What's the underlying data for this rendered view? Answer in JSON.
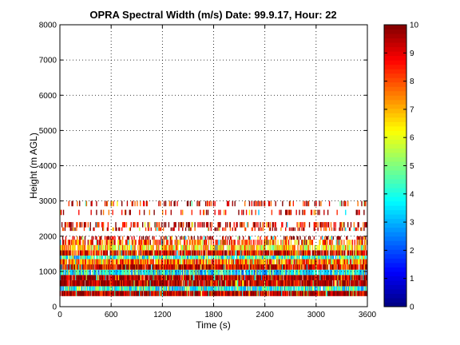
{
  "chart_data": {
    "type": "heatmap",
    "title": "OPRA Spectral Width (m/s)  Date: 99.9.17, Hour: 22",
    "xlabel": "Time (s)",
    "ylabel": "Height (m AGL)",
    "xlim": [
      0,
      3600
    ],
    "ylim": [
      0,
      8000
    ],
    "x_ticks": [
      0,
      600,
      1200,
      1800,
      2400,
      3000,
      3600
    ],
    "y_ticks": [
      0,
      1000,
      2000,
      3000,
      4000,
      5000,
      6000,
      7000,
      8000
    ],
    "grid": true,
    "colormap": "jet",
    "colorbar": {
      "min": 0,
      "max": 10,
      "ticks": [
        0,
        1,
        2,
        3,
        4,
        5,
        6,
        7,
        8,
        9,
        10
      ]
    },
    "height_bands": [
      {
        "y": [
          300,
          450
        ],
        "value": 9.6,
        "coverage": 0.97
      },
      {
        "y": [
          450,
          580
        ],
        "value": 4.0,
        "coverage": 0.9
      },
      {
        "y": [
          580,
          750
        ],
        "value": 9.5,
        "coverage": 0.97
      },
      {
        "y": [
          750,
          900
        ],
        "value": 9.8,
        "coverage": 0.97
      },
      {
        "y": [
          900,
          1050
        ],
        "value": 3.8,
        "coverage": 0.9
      },
      {
        "y": [
          1050,
          1200
        ],
        "value": 9.2,
        "coverage": 0.95
      },
      {
        "y": [
          1200,
          1350
        ],
        "value": 7.8,
        "coverage": 0.9
      },
      {
        "y": [
          1350,
          1450
        ],
        "value": 4.2,
        "coverage": 0.85
      },
      {
        "y": [
          1450,
          1600
        ],
        "value": 9.0,
        "coverage": 0.85
      },
      {
        "y": [
          1600,
          1750
        ],
        "value": 6.8,
        "coverage": 0.75
      },
      {
        "y": [
          1750,
          1900
        ],
        "value": 8.2,
        "coverage": 0.6
      },
      {
        "y": [
          1900,
          2000
        ],
        "value": 9.4,
        "coverage": 0.35
      },
      {
        "y": [
          2150,
          2250
        ],
        "value": 9.0,
        "coverage": 0.3
      },
      {
        "y": [
          2250,
          2400
        ],
        "value": 9.2,
        "coverage": 0.35
      },
      {
        "y": [
          2600,
          2750
        ],
        "value": 9.0,
        "coverage": 0.2
      },
      {
        "y": [
          2850,
          3000
        ],
        "value": 9.3,
        "coverage": 0.25
      }
    ]
  }
}
